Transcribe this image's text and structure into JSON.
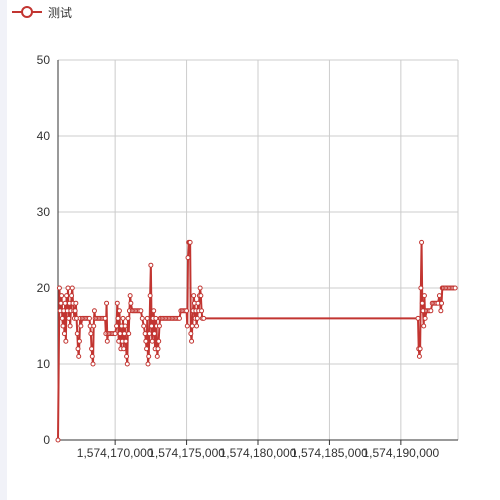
{
  "legend": {
    "label": "测试",
    "icon": "circle-line-icon"
  },
  "colors": {
    "series": "#c23531",
    "grid": "#cccccc",
    "axis": "#333333",
    "marker_fill": "#ffffff"
  },
  "chart_data": {
    "type": "line",
    "title": "",
    "xlabel": "",
    "ylabel": "",
    "xlim": [
      1574166000,
      1574194000
    ],
    "ylim": [
      0,
      50
    ],
    "x_ticks": [
      1574170000,
      1574175000,
      1574180000,
      1574185000,
      1574190000
    ],
    "x_tick_labels": [
      "1,574,170,000",
      "1,574,175,000",
      "1,574,180,000",
      "1,574,185,000",
      "1,574,190,000"
    ],
    "y_ticks": [
      0,
      10,
      20,
      30,
      40,
      50
    ],
    "y_tick_labels": [
      "0",
      "10",
      "20",
      "30",
      "40",
      "50"
    ],
    "grid": true,
    "legend_position": "top-left",
    "series": [
      {
        "name": "测试",
        "x": [
          1574166000,
          1574166100,
          1574166150,
          1574166200,
          1574166250,
          1574166300,
          1574166350,
          1574166400,
          1574166450,
          1574166500,
          1574166550,
          1574166600,
          1574166650,
          1574166700,
          1574166750,
          1574166800,
          1574166850,
          1574166900,
          1574166950,
          1574167000,
          1574167050,
          1574167100,
          1574167150,
          1574167200,
          1574167250,
          1574167300,
          1574167350,
          1574167400,
          1574167450,
          1574167500,
          1574167550,
          1574167600,
          1574167700,
          1574167800,
          1574167900,
          1574168000,
          1574168100,
          1574168200,
          1574168250,
          1574168300,
          1574168350,
          1574168400,
          1574168450,
          1574168500,
          1574168550,
          1574168600,
          1574168700,
          1574168800,
          1574168900,
          1574169000,
          1574169100,
          1574169200,
          1574169300,
          1574169350,
          1574169400,
          1574169450,
          1574169500,
          1574169600,
          1574169700,
          1574169800,
          1574169900,
          1574170000,
          1574170100,
          1574170150,
          1574170200,
          1574170250,
          1574170300,
          1574170350,
          1574170400,
          1574170450,
          1574170500,
          1574170550,
          1574170600,
          1574170650,
          1574170700,
          1574170750,
          1574170800,
          1574170850,
          1574170900,
          1574170950,
          1574171000,
          1574171050,
          1574171100,
          1574171200,
          1574171300,
          1574171400,
          1574171500,
          1574171600,
          1574171700,
          1574171800,
          1574171900,
          1574172000,
          1574172100,
          1574172150,
          1574172200,
          1574172250,
          1574172300,
          1574172350,
          1574172400,
          1574172450,
          1574172500,
          1574172550,
          1574172600,
          1574172650,
          1574172700,
          1574172750,
          1574172800,
          1574172850,
          1574172900,
          1574172950,
          1574173000,
          1574173050,
          1574173100,
          1574173150,
          1574173200,
          1574173300,
          1574173400,
          1574173500,
          1574173600,
          1574173700,
          1574173800,
          1574173900,
          1574174000,
          1574174100,
          1574174200,
          1574174300,
          1574174400,
          1574174500,
          1574174600,
          1574174700,
          1574174800,
          1574174900,
          1574175000,
          1574175050,
          1574175100,
          1574175150,
          1574175200,
          1574175250,
          1574175300,
          1574175350,
          1574175400,
          1574175450,
          1574175500,
          1574175550,
          1574175600,
          1574175650,
          1574175700,
          1574175750,
          1574175800,
          1574175850,
          1574175900,
          1574175950,
          1574176000,
          1574176050,
          1574176100,
          1574176200,
          1574191200,
          1574191250,
          1574191300,
          1574191350,
          1574191400,
          1574191450,
          1574191500,
          1574191550,
          1574191600,
          1574191650,
          1574191700,
          1574191800,
          1574191900,
          1574192000,
          1574192100,
          1574192200,
          1574192300,
          1574192400,
          1574192500,
          1574192600,
          1574192700,
          1574192800,
          1574192850,
          1574192900,
          1574192950,
          1574193000,
          1574193100,
          1574193200,
          1574193300,
          1574193400,
          1574193500,
          1574193600,
          1574193700,
          1574193800
        ],
        "y": [
          0,
          20,
          17,
          18,
          19,
          16,
          15,
          17,
          14,
          18,
          13,
          19,
          17,
          20,
          16,
          18,
          15,
          17,
          19,
          20,
          18,
          17,
          16,
          17,
          18,
          16,
          14,
          12,
          11,
          13,
          16,
          15,
          16,
          16,
          16,
          16,
          16,
          16,
          15,
          14,
          12,
          11,
          10,
          15,
          17,
          16,
          16,
          16,
          16,
          16,
          16,
          16,
          16,
          14,
          18,
          13,
          14,
          14,
          14,
          14,
          14,
          14,
          15,
          18,
          16,
          13,
          17,
          14,
          12,
          15,
          13,
          16,
          12,
          14,
          15,
          13,
          11,
          10,
          16,
          14,
          17,
          19,
          18,
          17,
          17,
          17,
          17,
          17,
          17,
          17,
          16,
          15,
          14,
          13,
          12,
          16,
          10,
          11,
          14,
          19,
          23,
          15,
          13,
          16,
          17,
          14,
          12,
          16,
          15,
          11,
          12,
          13,
          15,
          16,
          16,
          16,
          16,
          16,
          16,
          16,
          16,
          16,
          16,
          16,
          16,
          16,
          16,
          16,
          17,
          17,
          17,
          17,
          17,
          15,
          24,
          26,
          26,
          26,
          14,
          13,
          15,
          17,
          19,
          18,
          16,
          17,
          15,
          16,
          18,
          17,
          19,
          20,
          19,
          17,
          16,
          16,
          16,
          12,
          11,
          12,
          20,
          26,
          18,
          17,
          15,
          19,
          16,
          17,
          17,
          17,
          17,
          18,
          18,
          18,
          18,
          18,
          19,
          17,
          18,
          20,
          20,
          20,
          20,
          20,
          20,
          20,
          20,
          20,
          20,
          20
        ]
      }
    ]
  }
}
